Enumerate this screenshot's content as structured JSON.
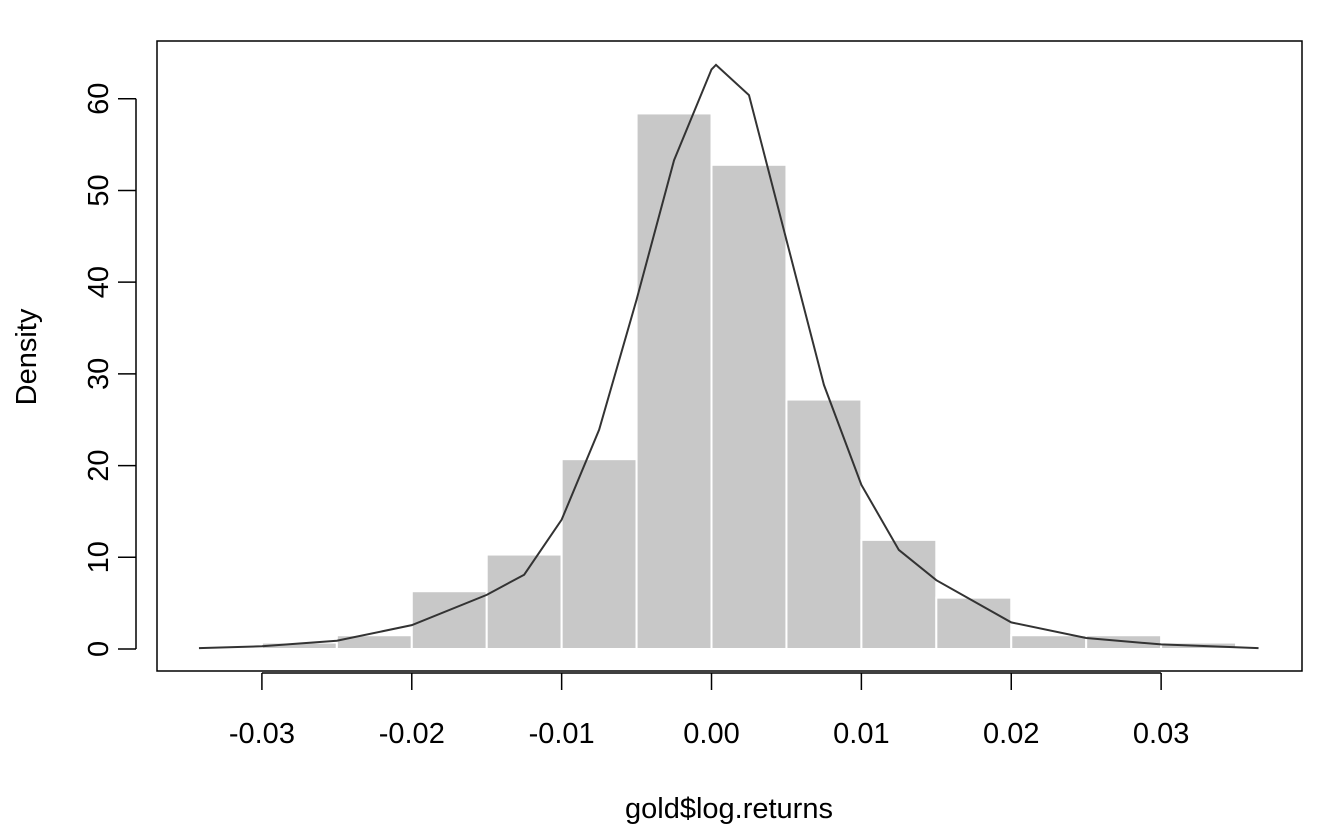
{
  "chart_data": {
    "type": "histogram",
    "x_label": "gold$log.returns",
    "y_label": "Density",
    "bins": [
      -0.03,
      -0.025,
      -0.02,
      -0.015,
      -0.01,
      -0.005,
      0,
      0.005,
      0.01,
      0.015,
      0.02,
      0.025,
      0.03,
      0.035
    ],
    "values": [
      0.7,
      1.5,
      6.3,
      10.3,
      20.7,
      58.4,
      52.8,
      27.2,
      11.9,
      5.6,
      1.5,
      1.5,
      0.7
    ],
    "color": "#c8c8c8",
    "curve": {
      "type": "line",
      "color": "#333333",
      "x": [
        -0.0342,
        -0.03,
        -0.025,
        -0.02,
        -0.015,
        -0.0125,
        -0.01,
        -0.0075,
        -0.005,
        -0.0025,
        0,
        0.0003,
        0.0025,
        0.005,
        0.0075,
        0.01,
        0.0125,
        0.015,
        0.02,
        0.025,
        0.03,
        0.0365
      ],
      "values": [
        0.1,
        0.3,
        0.9,
        2.6,
        5.9,
        8.1,
        14.1,
        23.9,
        38.1,
        53.3,
        63.2,
        63.7,
        60.4,
        44.6,
        28.8,
        17.9,
        10.8,
        7.5,
        2.9,
        1.2,
        0.5,
        0.1
      ]
    },
    "xlim": [
      -0.037,
      0.0394
    ],
    "ylim": [
      -2.4,
      66.3
    ],
    "xticks": [
      -0.03,
      -0.02,
      -0.01,
      {
        "value": 0,
        "label": "0.00"
      },
      0.01,
      0.02,
      0.03
    ],
    "yticks": [
      0,
      10,
      20,
      30,
      40,
      50,
      60
    ]
  }
}
